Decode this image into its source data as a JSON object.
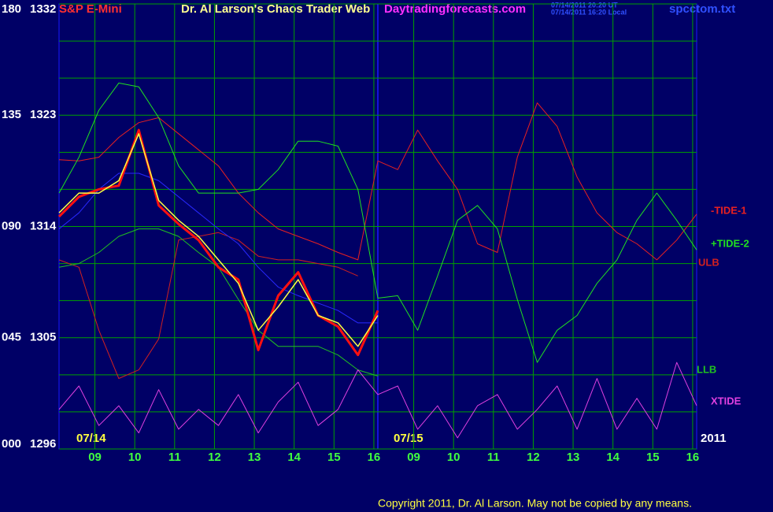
{
  "chart_data": {
    "type": "line",
    "title": "Dr. Al Larson's Chaos Trader Web",
    "instrument": "S&P E-Mini",
    "site": "Daytradingforecasts.com",
    "timestamps": [
      "07/14/2011 20:20 UT",
      "07/14/2011 16:20 Local"
    ],
    "file": "spcctom.txt",
    "day_labels": [
      "07/14",
      "07/15"
    ],
    "year": "2011",
    "copyright": "Copyright 2011, Dr. Al Larson. May not be copied by any means.",
    "xlim": [
      8.1,
      24.1
    ],
    "xticks": [
      {
        "value": 9,
        "label": "09"
      },
      10,
      11,
      12,
      13,
      14,
      15,
      16,
      {
        "value": 17,
        "label": "09"
      },
      {
        "value": 18,
        "label": "10"
      },
      {
        "value": 19,
        "label": "11"
      },
      {
        "value": 20,
        "label": "12"
      },
      {
        "value": 21,
        "label": "13"
      },
      {
        "value": 22,
        "label": "14"
      },
      {
        "value": 23,
        "label": "15"
      },
      {
        "value": 24,
        "label": "16"
      }
    ],
    "ylim": [
      1296,
      1332
    ],
    "yticks": [
      1296,
      1305,
      1314,
      1323,
      1332
    ],
    "ygridlines": [
      1296,
      1299,
      1302,
      1305,
      1308,
      1311,
      1314,
      1317,
      1320,
      1323,
      1326,
      1329,
      1332
    ],
    "y2lim": [
      0,
      180
    ],
    "y2ticks": [
      {
        "value": 0,
        "label": "000"
      },
      {
        "value": 45,
        "label": "045"
      },
      {
        "value": 90,
        "label": "090"
      },
      135,
      180
    ],
    "grid": true,
    "x": [
      8.1,
      8.6,
      9.1,
      9.6,
      10.1,
      10.6,
      11.1,
      11.6,
      12.1,
      12.6,
      13.1,
      13.6,
      14.1,
      14.6,
      15.1,
      15.6,
      16.1,
      16.6,
      17.1,
      17.6,
      18.1,
      18.6,
      19.1,
      19.6,
      20.1,
      20.6,
      21.1,
      21.6,
      22.1,
      22.6,
      23.1,
      23.6,
      24.1
    ],
    "series": [
      {
        "name": "-TIDE-1",
        "color": "#e82020",
        "values": [
          1319.4,
          1319.3,
          1319.6,
          1321.2,
          1322.4,
          1322.8,
          1321.5,
          1320.2,
          1318.9,
          1316.7,
          1315.1,
          1313.8,
          1313.2,
          1312.6,
          1311.9,
          1311.3,
          1319.3,
          1318.6,
          1321.8,
          1319.3,
          1317.0,
          1312.6,
          1311.9,
          1319.6,
          1324.0,
          1322.1,
          1318.0,
          1315.1,
          1313.5,
          1312.6,
          1311.3,
          1312.9,
          1315.0
        ]
      },
      {
        "name": "+TIDE-2",
        "color": "#20e020",
        "values": [
          1316.7,
          1319.6,
          1323.4,
          1325.6,
          1325.3,
          1322.8,
          1318.9,
          1316.7,
          1316.7,
          1316.7,
          1317.0,
          1318.6,
          1320.9,
          1320.9,
          1320.5,
          1317.0,
          1308.2,
          1308.4,
          1305.6,
          1310.0,
          1314.5,
          1315.7,
          1313.8,
          1308.1,
          1303.0,
          1305.6,
          1306.8,
          1309.4,
          1311.3,
          1314.5,
          1316.7,
          1314.5,
          1312.1
        ]
      },
      {
        "name": "ULB",
        "color": "#d02020",
        "values": [
          1311.3,
          1310.7,
          1305.6,
          1301.7,
          1302.4,
          1304.9,
          1312.9,
          1313.2,
          1313.5,
          1312.9,
          1311.6,
          1311.3,
          1311.3,
          1311.0,
          1310.7,
          1310.0,
          null,
          null,
          null,
          null,
          null,
          null,
          null,
          null,
          null,
          null,
          null,
          null,
          null,
          null,
          null,
          null,
          null
        ]
      },
      {
        "name": "LLB",
        "color": "#20c020",
        "values": [
          1310.7,
          1311.0,
          1311.9,
          1313.2,
          1313.8,
          1313.8,
          1313.2,
          1311.9,
          1310.7,
          1308.1,
          1305.6,
          1304.3,
          1304.3,
          1304.3,
          1303.6,
          1302.4,
          1301.9,
          null,
          null,
          null,
          null,
          null,
          null,
          null,
          null,
          null,
          null,
          null,
          null,
          null,
          null,
          null,
          null
        ]
      },
      {
        "name": "XTIDE",
        "color": "#e040e0",
        "values": [
          1299.2,
          1301.1,
          1297.9,
          1299.5,
          1297.3,
          1300.8,
          1297.6,
          1299.2,
          1297.9,
          1300.4,
          1297.3,
          1299.8,
          1301.4,
          1297.9,
          1299.2,
          1302.4,
          1300.4,
          1301.1,
          1297.6,
          1299.5,
          1296.9,
          1299.5,
          1300.4,
          1297.6,
          1299.2,
          1301.1,
          1297.6,
          1301.7,
          1297.6,
          1300.1,
          1297.6,
          1303.0,
          1299.5
        ]
      },
      {
        "color": "#2828ff",
        "values": [
          1313.8,
          1315.1,
          1317.0,
          1318.3,
          1318.3,
          1317.7,
          1316.4,
          1315.1,
          1313.8,
          1312.6,
          1310.7,
          1309.1,
          1308.4,
          1307.8,
          1307.2,
          1306.2,
          1306.2,
          null,
          null,
          null,
          null,
          null,
          null,
          null,
          null,
          null,
          null,
          null,
          null,
          null,
          null,
          null,
          null
        ]
      },
      {
        "color": "#ff1010",
        "values": [
          1314.8,
          1316.4,
          1317.0,
          1317.3,
          1321.8,
          1315.7,
          1314.2,
          1312.9,
          1310.7,
          1309.7,
          1304.0,
          1308.4,
          1310.3,
          1306.8,
          1305.9,
          1303.6,
          1307.2,
          null,
          null,
          null,
          null,
          null,
          null,
          null,
          null,
          null,
          null,
          null,
          null,
          null,
          null,
          null,
          null
        ]
      },
      {
        "color": "#ffff40",
        "values": [
          1315.1,
          1316.7,
          1316.7,
          1317.7,
          1321.5,
          1316.1,
          1314.5,
          1313.2,
          1311.3,
          1309.4,
          1305.6,
          1307.5,
          1309.7,
          1306.8,
          1306.2,
          1304.3,
          1306.8,
          null,
          null,
          null,
          null,
          null,
          null,
          null,
          null,
          null,
          null,
          null,
          null,
          null,
          null,
          null,
          null
        ]
      }
    ]
  }
}
